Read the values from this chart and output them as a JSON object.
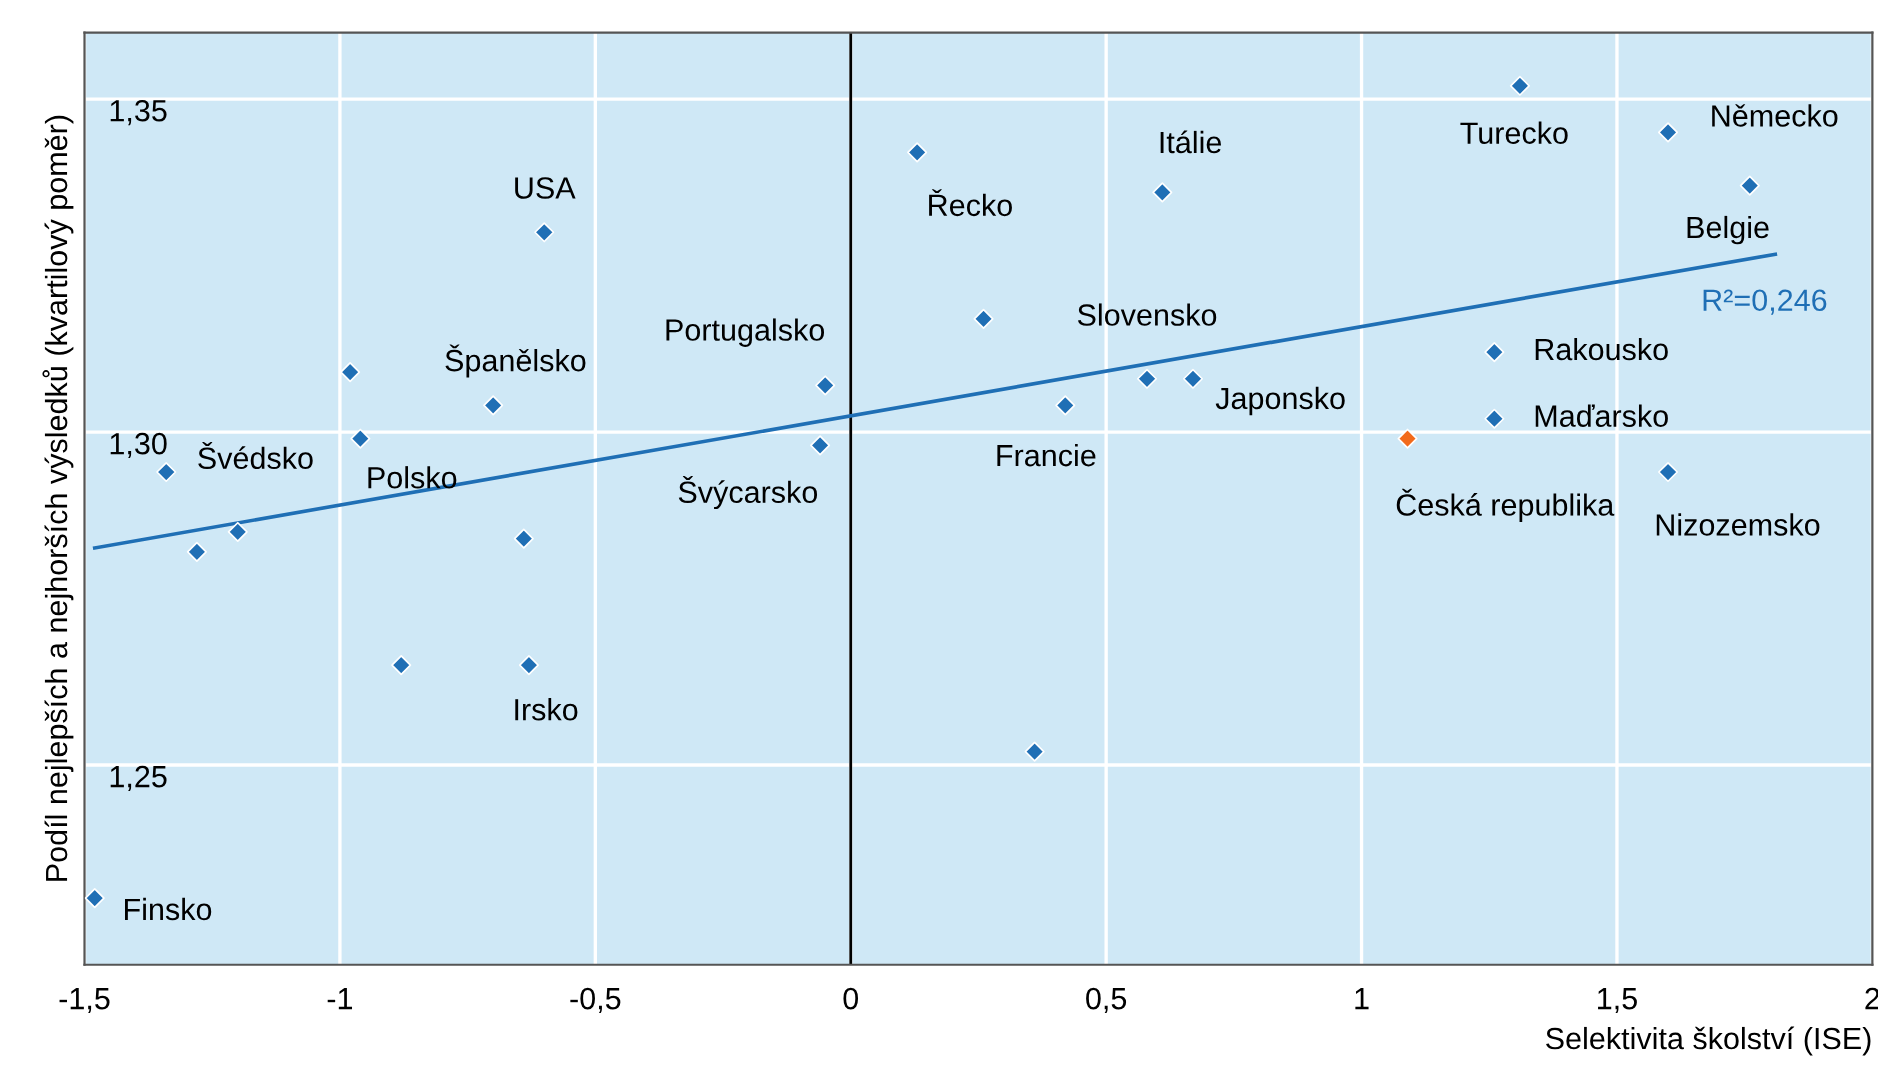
{
  "chart_data": {
    "type": "scatter",
    "xlabel": "Selektivita školství (ISE)",
    "ylabel": "Podíl nejlepších a nejhorších výsledků (kvartilový poměr)",
    "xlim": [
      -1.5,
      2
    ],
    "ylim": [
      1.22,
      1.36
    ],
    "xticks": [
      {
        "value": -1.5,
        "label": "-1,5"
      },
      {
        "value": -1,
        "label": "-1"
      },
      {
        "value": -0.5,
        "label": "-0,5"
      },
      0,
      {
        "value": 0.5,
        "label": "0,5"
      },
      1,
      {
        "value": 1.5,
        "label": "1,5"
      },
      2
    ],
    "yticks": [
      {
        "value": 1.25,
        "label": "1,25"
      },
      {
        "value": 1.3,
        "label": "1,30"
      },
      {
        "value": 1.35,
        "label": "1,35"
      }
    ],
    "grid": true,
    "legend": false,
    "ref_lines": [
      {
        "axis": "x",
        "value": 0,
        "label": null,
        "color": "#000000"
      }
    ],
    "series": [
      {
        "marker": "diamond",
        "color": "#1f6fb5",
        "x": [
          -1.48,
          -1.34,
          -1.28,
          -1.2,
          -0.98,
          -0.96,
          -0.88,
          -0.7,
          -0.64,
          -0.63,
          -0.6,
          -0.05,
          -0.06,
          0.13,
          0.26,
          0.36,
          0.42,
          0.61,
          0.58,
          0.67,
          1.09,
          1.26,
          1.26,
          1.31,
          1.6,
          1.6,
          1.76
        ],
        "values": [
          1.23,
          1.294,
          1.282,
          1.285,
          1.309,
          1.299,
          1.265,
          1.304,
          1.284,
          1.265,
          1.33,
          1.307,
          1.298,
          1.342,
          1.317,
          1.252,
          1.304,
          1.336,
          1.308,
          1.308,
          1.299,
          1.312,
          1.302,
          1.352,
          1.345,
          1.294,
          1.337
        ],
        "colors": [
          "#1f6fb5",
          "#1f6fb5",
          "#1f6fb5",
          "#1f6fb5",
          "#1f6fb5",
          "#1f6fb5",
          "#1f6fb5",
          "#1f6fb5",
          "#1f6fb5",
          "#1f6fb5",
          "#1f6fb5",
          "#1f6fb5",
          "#1f6fb5",
          "#1f6fb5",
          "#1f6fb5",
          "#1f6fb5",
          "#1f6fb5",
          "#1f6fb5",
          "#1f6fb5",
          "#1f6fb5",
          "#f26a1b",
          "#1f6fb5",
          "#1f6fb5",
          "#1f6fb5",
          "#1f6fb5",
          "#1f6fb5",
          "#1f6fb5"
        ]
      },
      {
        "type": "line",
        "color": "#1f6fb5",
        "x": [
          -1.48,
          1.81
        ],
        "values": [
          1.2826,
          1.3267
        ]
      }
    ],
    "annotations": [
      {
        "text": "Finsko",
        "x": -1.48,
        "y": 1.23
      },
      {
        "text": "Švédsko",
        "x": -1.34,
        "y": 1.294
      },
      {
        "text": "Polsko",
        "x": -0.96,
        "y": 1.299
      },
      {
        "text": "Španělsko",
        "x": -0.7,
        "y": 1.304
      },
      {
        "text": "Irsko",
        "x": -0.63,
        "y": 1.265
      },
      {
        "text": "USA",
        "x": -0.6,
        "y": 1.33
      },
      {
        "text": "Portugalsko",
        "x": -0.05,
        "y": 1.307
      },
      {
        "text": "Švýcarsko",
        "x": -0.06,
        "y": 1.298
      },
      {
        "text": "Řecko",
        "x": 0.13,
        "y": 1.342
      },
      {
        "text": "Francie",
        "x": 0.42,
        "y": 1.304
      },
      {
        "text": "Itálie",
        "x": 0.61,
        "y": 1.336
      },
      {
        "text": "Slovensko",
        "x": 0.58,
        "y": 1.308
      },
      {
        "text": "Japonsko",
        "x": 0.67,
        "y": 1.308
      },
      {
        "text": "Česká republika",
        "x": 1.09,
        "y": 1.299
      },
      {
        "text": "Rakousko",
        "x": 1.26,
        "y": 1.312
      },
      {
        "text": "Maďarsko",
        "x": 1.26,
        "y": 1.302
      },
      {
        "text": "Turecko",
        "x": 1.31,
        "y": 1.352
      },
      {
        "text": "Německo",
        "x": 1.6,
        "y": 1.345
      },
      {
        "text": "Nizozemsko",
        "x": 1.6,
        "y": 1.294
      },
      {
        "text": "Belgie",
        "x": 1.76,
        "y": 1.337
      },
      "R²=0,246"
    ]
  }
}
